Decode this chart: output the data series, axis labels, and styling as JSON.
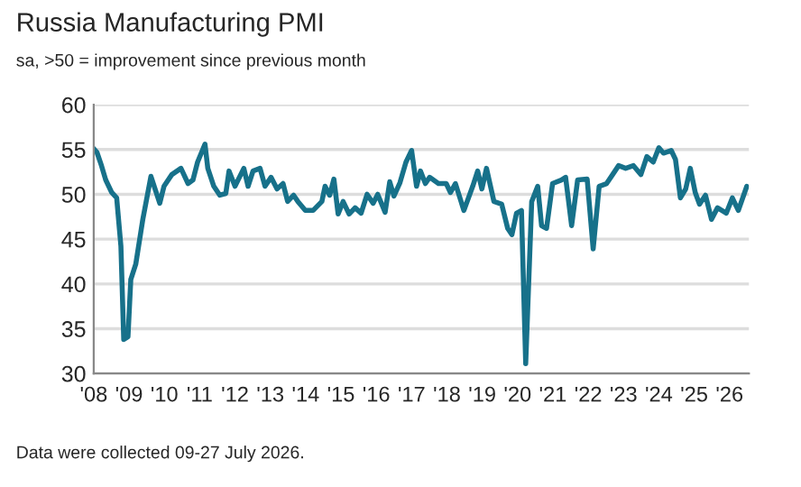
{
  "chart_data": {
    "type": "line",
    "title": "Russia Manufacturing PMI",
    "subtitle": "sa, >50 = improvement since previous month",
    "annotations": [
      "Data were collected 09-27 July 2026."
    ],
    "series": [
      {
        "color": "#17718a",
        "x": [
          2008.0,
          2008.09,
          2008.22,
          2008.34,
          2008.51,
          2008.65,
          2008.77,
          2008.85,
          2008.97,
          2009.05,
          2009.19,
          2009.39,
          2009.62,
          2009.87,
          2009.99,
          2010.21,
          2010.47,
          2010.67,
          2010.81,
          2010.94,
          2011.15,
          2011.23,
          2011.4,
          2011.57,
          2011.74,
          2011.83,
          2012.0,
          2012.25,
          2012.37,
          2012.51,
          2012.71,
          2012.85,
          2013.02,
          2013.19,
          2013.36,
          2013.49,
          2013.66,
          2013.78,
          2013.99,
          2014.21,
          2014.46,
          2014.55,
          2014.68,
          2014.8,
          2014.92,
          2015.06,
          2015.23,
          2015.4,
          2015.57,
          2015.74,
          2015.91,
          2016.04,
          2016.25,
          2016.38,
          2016.5,
          2016.67,
          2016.84,
          2017.0,
          2017.14,
          2017.25,
          2017.39,
          2017.51,
          2017.76,
          2017.98,
          2018.1,
          2018.24,
          2018.48,
          2018.73,
          2018.87,
          2018.99,
          2019.12,
          2019.33,
          2019.55,
          2019.72,
          2019.84,
          2019.97,
          2020.11,
          2020.23,
          2020.4,
          2020.57,
          2020.68,
          2020.82,
          2020.99,
          2021.24,
          2021.36,
          2021.53,
          2021.7,
          2021.97,
          2022.14,
          2022.31,
          2022.52,
          2022.69,
          2022.86,
          2023.06,
          2023.28,
          2023.49,
          2023.66,
          2023.84,
          2024.0,
          2024.13,
          2024.35,
          2024.47,
          2024.61,
          2024.76,
          2024.89,
          2025.03,
          2025.15,
          2025.32,
          2025.49,
          2025.66,
          2025.91,
          2026.08,
          2026.25,
          2026.49
        ],
        "values": [
          55.1,
          54.7,
          53.2,
          51.6,
          50.2,
          49.6,
          44.2,
          33.8,
          34.1,
          40.5,
          42.2,
          47.2,
          52.0,
          49.0,
          50.9,
          52.2,
          52.9,
          51.2,
          51.6,
          53.6,
          55.6,
          52.9,
          50.9,
          49.9,
          50.1,
          52.6,
          50.9,
          52.9,
          50.9,
          52.6,
          52.9,
          50.9,
          51.9,
          50.6,
          51.2,
          49.2,
          49.9,
          49.2,
          48.2,
          48.2,
          49.2,
          50.9,
          49.9,
          51.7,
          47.8,
          49.2,
          47.8,
          48.5,
          47.9,
          50.0,
          49.0,
          50.0,
          48.0,
          51.4,
          49.8,
          51.3,
          53.6,
          54.9,
          50.9,
          52.6,
          51.2,
          51.9,
          51.2,
          51.2,
          50.2,
          51.2,
          48.2,
          50.9,
          52.6,
          50.6,
          52.9,
          49.2,
          48.9,
          46.2,
          45.5,
          47.9,
          48.2,
          31.1,
          49.2,
          50.9,
          46.5,
          46.2,
          51.2,
          51.6,
          51.9,
          46.5,
          51.6,
          51.7,
          43.9,
          50.9,
          51.2,
          52.2,
          53.2,
          52.9,
          53.2,
          52.2,
          54.2,
          53.6,
          55.2,
          54.6,
          54.9,
          53.9,
          49.6,
          50.6,
          52.9,
          50.2,
          48.9,
          49.9,
          47.2,
          48.5,
          47.9,
          49.6,
          48.2,
          50.9
        ]
      }
    ],
    "xlim": [
      2008,
      2026.55
    ],
    "xticks": [
      {
        "value": 2008,
        "label": "'08"
      },
      {
        "value": 2009,
        "label": "'09"
      },
      {
        "value": 2010,
        "label": "'10"
      },
      {
        "value": 2011,
        "label": "'11"
      },
      {
        "value": 2012,
        "label": "'12"
      },
      {
        "value": 2013,
        "label": "'13"
      },
      {
        "value": 2014,
        "label": "'14"
      },
      {
        "value": 2015,
        "label": "'15"
      },
      {
        "value": 2016,
        "label": "'16"
      },
      {
        "value": 2017,
        "label": "'17"
      },
      {
        "value": 2018,
        "label": "'18"
      },
      {
        "value": 2019,
        "label": "'19"
      },
      {
        "value": 2020,
        "label": "'20"
      },
      {
        "value": 2021,
        "label": "'21"
      },
      {
        "value": 2022,
        "label": "'22"
      },
      {
        "value": 2023,
        "label": "'23"
      },
      {
        "value": 2024,
        "label": "'24"
      },
      {
        "value": 2025,
        "label": "'25"
      },
      {
        "value": 2026,
        "label": "'26"
      }
    ],
    "ylim": [
      30,
      60
    ],
    "yticks": [
      30,
      35,
      40,
      45,
      50,
      55,
      60
    ],
    "grid": "y",
    "legend": false
  }
}
